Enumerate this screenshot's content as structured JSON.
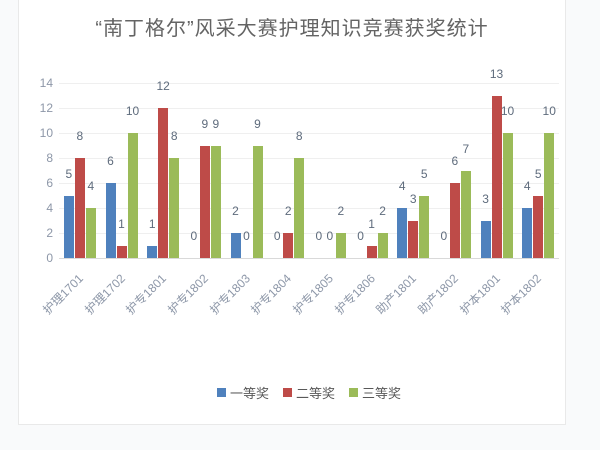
{
  "title": "“南丁格尔”风采大赛护理知识竞赛获奖统计",
  "chart_data": {
    "type": "bar",
    "title": "“南丁格尔”风采大赛护理知识竞赛获奖统计",
    "xlabel": "",
    "ylabel": "",
    "categories": [
      "护理1701",
      "护理1702",
      "护专1801",
      "护专1802",
      "护专1803",
      "护专1804",
      "护专1805",
      "护专1806",
      "助产1801",
      "助产1802",
      "护本1801",
      "护本1802"
    ],
    "series": [
      {
        "name": "一等奖",
        "color": "#4F81BD",
        "values": [
          5,
          6,
          1,
          0,
          2,
          0,
          0,
          0,
          4,
          0,
          3,
          4
        ]
      },
      {
        "name": "二等奖",
        "color": "#BE4B48",
        "values": [
          8,
          1,
          12,
          9,
          0,
          2,
          0,
          1,
          3,
          6,
          13,
          5
        ]
      },
      {
        "name": "三等奖",
        "color": "#9BBB59",
        "values": [
          4,
          10,
          8,
          9,
          9,
          8,
          2,
          2,
          5,
          7,
          10,
          10
        ]
      }
    ],
    "ylim": [
      0,
      14
    ],
    "yticks": [
      0,
      2,
      4,
      6,
      8,
      10,
      12,
      14
    ],
    "grid": true,
    "data_labels": true,
    "legend_position": "bottom"
  },
  "style_colors": {
    "gridline": "#efefef",
    "axis_line": "#d9d9d9",
    "tick_text": "#8d97a8",
    "data_label_text": "#5e6b7c",
    "title_text": "#646464",
    "legend_text": "#595959"
  }
}
